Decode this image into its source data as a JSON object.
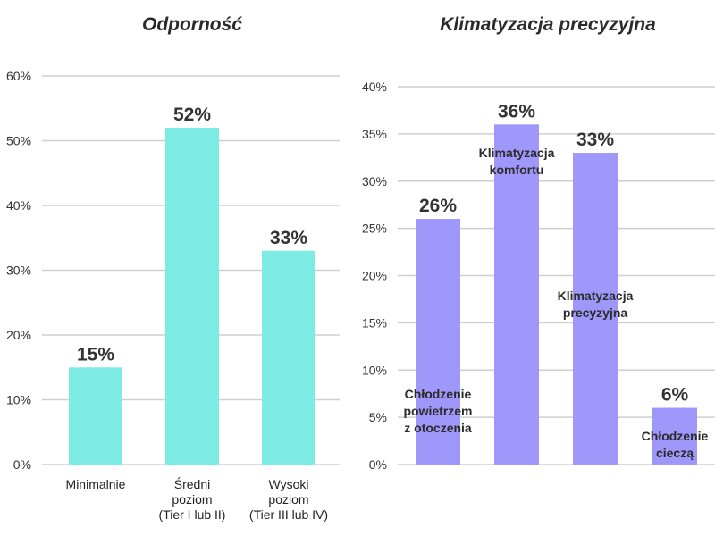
{
  "chart_data": [
    {
      "type": "bar",
      "title": "Odporność",
      "categories": [
        [
          "Minimalnie"
        ],
        [
          "Średni",
          "poziom",
          "(Tier I lub II)"
        ],
        [
          "Wysoki",
          "poziom",
          "(Tier III lub IV)"
        ]
      ],
      "values": [
        15,
        52,
        33
      ],
      "value_labels": [
        "15%",
        "52%",
        "33%"
      ],
      "ylim": [
        0,
        60
      ],
      "yticks": [
        0,
        10,
        20,
        30,
        40,
        50,
        60
      ],
      "ytick_labels": [
        "0%",
        "10%",
        "20%",
        "30%",
        "40%",
        "50%",
        "60%"
      ],
      "color": "#7eebe4",
      "grid": true
    },
    {
      "type": "bar",
      "title": "Klimatyzacja precyzyjna",
      "categories": [
        [
          "Chłodzenie",
          "powietrzem",
          "z otoczenia"
        ],
        [
          "Klimatyzacja",
          "komfortu"
        ],
        [
          "Klimatyzacja",
          "precyzyjna"
        ],
        [
          "Chłodzenie",
          "cieczą"
        ]
      ],
      "values": [
        26,
        36,
        33,
        6
      ],
      "value_labels": [
        "26%",
        "36%",
        "33%",
        "6%"
      ],
      "ylim": [
        0,
        40
      ],
      "yticks": [
        0,
        5,
        10,
        15,
        20,
        25,
        30,
        35,
        40
      ],
      "ytick_labels": [
        "0%",
        "5%",
        "10%",
        "15%",
        "20%",
        "25%",
        "30%",
        "35%",
        "40%"
      ],
      "color": "#a097fa",
      "grid": true
    }
  ]
}
